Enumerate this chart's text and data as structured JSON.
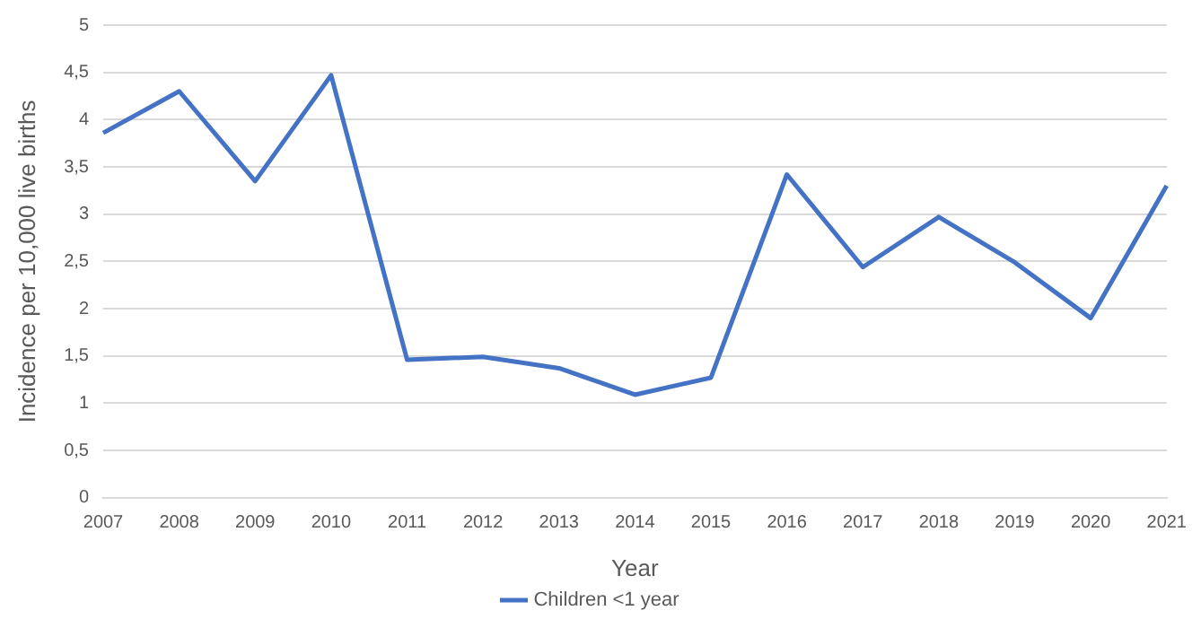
{
  "chart_data": {
    "type": "line",
    "xlabel": "Year",
    "ylabel": "Incidence per 10,000 live births",
    "categories": [
      "2007",
      "2008",
      "2009",
      "2010",
      "2011",
      "2012",
      "2013",
      "2014",
      "2015",
      "2016",
      "2017",
      "2018",
      "2019",
      "2020",
      "2021"
    ],
    "series": [
      {
        "name": "Children <1 year",
        "color": "#4472c4",
        "values": [
          3.86,
          4.3,
          3.35,
          4.47,
          1.46,
          1.49,
          1.37,
          1.09,
          1.27,
          3.42,
          2.44,
          2.97,
          2.49,
          1.9,
          3.3
        ]
      }
    ],
    "ylim": [
      0,
      5
    ],
    "yticks": [
      0,
      {
        "value": 0.5,
        "label": "0,5"
      },
      1,
      {
        "value": 1.5,
        "label": "1,5"
      },
      2,
      {
        "value": 2.5,
        "label": "2,5"
      },
      3,
      {
        "value": 3.5,
        "label": "3,5"
      },
      4,
      {
        "value": 4.5,
        "label": "4,5"
      },
      5
    ],
    "grid": "y",
    "legend": "bottom",
    "marker": "none",
    "line_style": "solid"
  }
}
